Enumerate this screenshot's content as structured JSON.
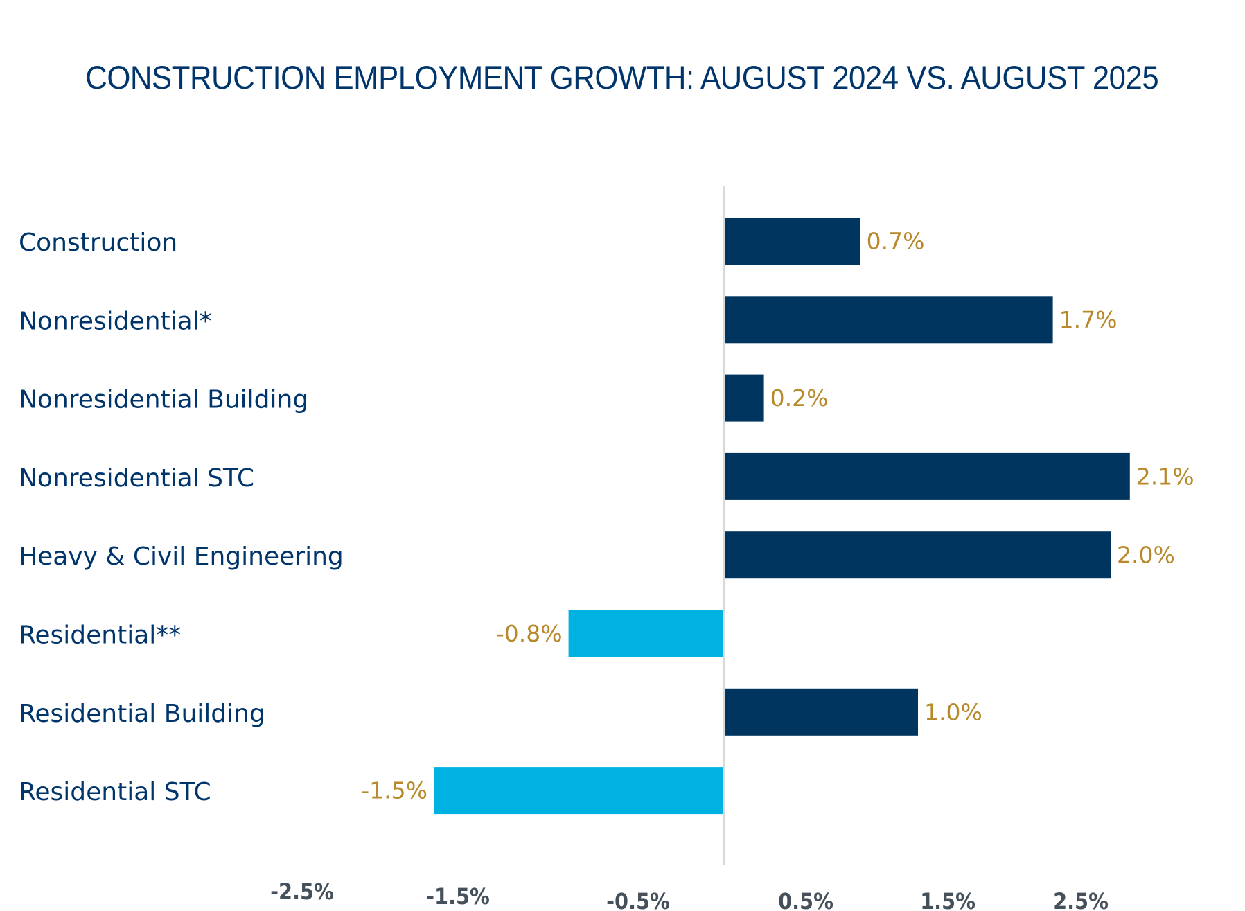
{
  "chart_data": {
    "type": "bar",
    "orientation": "horizontal",
    "title": "CONSTRUCTION EMPLOYMENT GROWTH: AUGUST 2024 VS. AUGUST 2025",
    "xlabel": "",
    "ylabel": "",
    "categories": [
      "Construction",
      "Nonresidential*",
      "Nonresidential Building",
      "Nonresidential STC",
      "Heavy & Civil Engineering",
      "Residential**",
      "Residential Building",
      "Residential STC"
    ],
    "values": [
      0.7,
      1.7,
      0.2,
      2.1,
      2.0,
      -0.8,
      1.0,
      -1.5
    ],
    "value_labels": [
      "0.7%",
      "1.7%",
      "0.2%",
      "2.1%",
      "2.0%",
      "-0.8%",
      "1.0%",
      "-1.5%"
    ],
    "x_ticks": [
      -2.5,
      -1.5,
      -0.5,
      0.5,
      1.5,
      2.5
    ],
    "x_tick_labels": [
      "-2.5%",
      "-1.5%",
      "-0.5%",
      "0.5%",
      "1.5%",
      "2.5%"
    ],
    "xlim": [
      -2.5,
      2.5
    ],
    "grid": false,
    "legend": "none",
    "colors": {
      "positive": "#00355f",
      "negative": "#00b2e2",
      "value_label": "#b8892a",
      "category_label": "#00356b",
      "tick_label": "#45505a",
      "axis_line": "#d9d9d9",
      "title": "#00356b"
    }
  }
}
